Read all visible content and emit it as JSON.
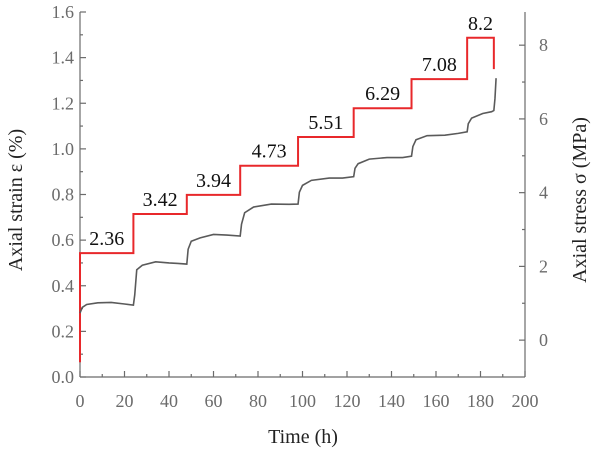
{
  "chart_data": {
    "type": "line",
    "xlabel": "Time (h)",
    "ylabel_left": "Axial strain ε (%)",
    "ylabel_right": "Axial stress σ (MPa)",
    "xlim": [
      0,
      200
    ],
    "ylim_left": [
      0.0,
      1.6
    ],
    "ylim_right": [
      -1.0,
      8.9
    ],
    "x_ticks": [
      0,
      20,
      40,
      60,
      80,
      100,
      120,
      140,
      160,
      180,
      200
    ],
    "y_left_ticks": [
      0.0,
      0.2,
      0.4,
      0.6,
      0.8,
      1.0,
      1.2,
      1.4,
      1.6
    ],
    "y_right_ticks": [
      0,
      2,
      4,
      6,
      8
    ],
    "grid": false,
    "legend": "none",
    "series": [
      {
        "axis": "right",
        "color": "#e8282b",
        "points": [
          [
            0,
            -0.6
          ],
          [
            0,
            2.36
          ],
          [
            24,
            2.36
          ],
          [
            24,
            3.42
          ],
          [
            48,
            3.42
          ],
          [
            48,
            3.94
          ],
          [
            72,
            3.94
          ],
          [
            72,
            4.73
          ],
          [
            98,
            4.73
          ],
          [
            98,
            5.51
          ],
          [
            123,
            5.51
          ],
          [
            123,
            6.29
          ],
          [
            149,
            6.29
          ],
          [
            149,
            7.08
          ],
          [
            174,
            7.08
          ],
          [
            174,
            8.2
          ],
          [
            186,
            8.2
          ],
          [
            186,
            7.35
          ]
        ]
      },
      {
        "axis": "left",
        "color": "#5a5a5a",
        "points": [
          [
            0,
            0.28
          ],
          [
            1,
            0.305
          ],
          [
            3,
            0.318
          ],
          [
            8,
            0.325
          ],
          [
            14,
            0.327
          ],
          [
            20,
            0.32
          ],
          [
            24,
            0.315
          ],
          [
            24.6,
            0.36
          ],
          [
            25.5,
            0.47
          ],
          [
            28,
            0.49
          ],
          [
            34,
            0.505
          ],
          [
            40,
            0.5
          ],
          [
            44,
            0.498
          ],
          [
            48,
            0.495
          ],
          [
            48.6,
            0.56
          ],
          [
            50,
            0.595
          ],
          [
            54,
            0.61
          ],
          [
            60,
            0.625
          ],
          [
            66,
            0.622
          ],
          [
            72,
            0.618
          ],
          [
            72.6,
            0.67
          ],
          [
            74,
            0.72
          ],
          [
            78,
            0.745
          ],
          [
            86,
            0.758
          ],
          [
            94,
            0.757
          ],
          [
            98,
            0.758
          ],
          [
            98.6,
            0.81
          ],
          [
            100,
            0.84
          ],
          [
            104,
            0.862
          ],
          [
            112,
            0.872
          ],
          [
            118,
            0.872
          ],
          [
            123,
            0.878
          ],
          [
            123.6,
            0.915
          ],
          [
            125,
            0.935
          ],
          [
            130,
            0.955
          ],
          [
            138,
            0.962
          ],
          [
            145,
            0.962
          ],
          [
            149,
            0.968
          ],
          [
            149.6,
            1.01
          ],
          [
            151,
            1.04
          ],
          [
            156,
            1.058
          ],
          [
            164,
            1.06
          ],
          [
            170,
            1.068
          ],
          [
            174,
            1.075
          ],
          [
            174.5,
            1.11
          ],
          [
            176,
            1.135
          ],
          [
            181,
            1.155
          ],
          [
            185,
            1.163
          ],
          [
            186,
            1.168
          ],
          [
            186.5,
            1.22
          ],
          [
            187,
            1.31
          ]
        ]
      }
    ],
    "annotations": [
      {
        "text": "2.36",
        "x": 12,
        "y": 2.36
      },
      {
        "text": "3.42",
        "x": 36,
        "y": 3.42
      },
      {
        "text": "3.94",
        "x": 60,
        "y": 3.94
      },
      {
        "text": "4.73",
        "x": 85,
        "y": 4.73
      },
      {
        "text": "5.51",
        "x": 110.5,
        "y": 5.51
      },
      {
        "text": "6.29",
        "x": 136,
        "y": 6.29
      },
      {
        "text": "7.08",
        "x": 161.5,
        "y": 7.08
      },
      {
        "text": "8.2",
        "x": 180,
        "y": 8.2
      }
    ]
  }
}
